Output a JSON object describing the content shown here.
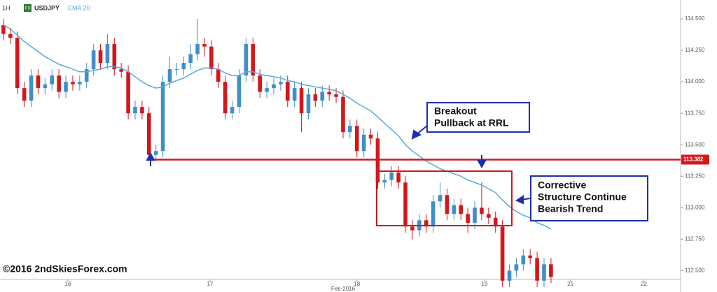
{
  "chart_data": {
    "type": "candlestick",
    "symbol": "USDJPY",
    "interval": "1H",
    "candles": {
      "up_color": "#3f8fc9",
      "down_color": "#d3171c",
      "open": [
        114.45,
        114.38,
        114.35,
        113.95,
        113.85,
        114.05,
        113.95,
        113.98,
        114.05,
        113.92,
        114.0,
        113.98,
        114.0,
        114.1,
        114.25,
        114.15,
        114.3,
        114.1,
        114.08,
        113.75,
        113.8,
        113.75,
        113.42,
        113.45,
        114.0,
        114.1,
        114.1,
        114.15,
        114.22,
        114.3,
        114.28,
        114.1,
        114.0,
        113.75,
        113.8,
        114.05,
        114.3,
        114.05,
        113.92,
        113.95,
        113.98,
        114.0,
        113.85,
        113.95,
        113.75,
        113.9,
        113.85,
        113.92,
        113.9,
        113.88,
        113.6,
        113.65,
        113.45,
        113.58,
        113.55,
        113.2,
        113.22,
        113.28,
        113.2,
        112.85,
        112.82,
        112.9,
        112.85,
        113.05,
        113.1,
        112.95,
        113.02,
        112.95,
        112.88,
        113.0,
        112.95,
        112.92,
        112.85,
        112.42,
        112.5,
        112.55,
        112.62,
        112.6,
        112.42,
        112.55
      ],
      "high": [
        114.5,
        114.43,
        114.4,
        114.0,
        114.1,
        114.1,
        114.03,
        114.1,
        114.1,
        114.05,
        114.05,
        114.05,
        114.15,
        114.3,
        114.3,
        114.38,
        114.35,
        114.15,
        114.13,
        113.85,
        113.85,
        113.8,
        113.5,
        114.05,
        114.2,
        114.15,
        114.2,
        114.3,
        114.5,
        114.35,
        114.33,
        114.15,
        114.05,
        113.85,
        114.1,
        114.35,
        114.35,
        114.1,
        114.0,
        114.03,
        114.05,
        114.05,
        114.0,
        114.0,
        113.95,
        113.95,
        113.97,
        113.97,
        113.95,
        113.93,
        113.7,
        113.7,
        113.63,
        113.63,
        113.6,
        113.27,
        113.33,
        113.33,
        113.25,
        112.9,
        112.95,
        112.95,
        113.1,
        113.2,
        113.15,
        113.07,
        113.07,
        113.0,
        113.05,
        113.2,
        113.0,
        112.97,
        112.9,
        112.55,
        112.6,
        112.67,
        112.67,
        112.65,
        112.6,
        112.6
      ],
      "low": [
        114.33,
        114.3,
        113.9,
        113.8,
        113.8,
        113.9,
        113.9,
        113.93,
        113.87,
        113.87,
        113.93,
        113.93,
        113.95,
        114.05,
        114.1,
        114.1,
        114.05,
        114.03,
        113.7,
        113.7,
        113.7,
        113.38,
        113.37,
        113.4,
        113.95,
        114.05,
        114.05,
        114.1,
        114.17,
        114.2,
        114.05,
        113.95,
        113.7,
        113.7,
        113.75,
        114.0,
        114.0,
        113.87,
        113.87,
        113.9,
        113.93,
        113.8,
        113.8,
        113.6,
        113.7,
        113.8,
        113.8,
        113.85,
        113.83,
        113.55,
        113.55,
        113.4,
        113.4,
        113.5,
        113.15,
        113.15,
        113.17,
        113.15,
        112.8,
        112.75,
        112.77,
        112.8,
        112.8,
        113.0,
        112.9,
        112.9,
        112.9,
        112.8,
        112.83,
        112.9,
        112.87,
        112.8,
        112.37,
        112.37,
        112.45,
        112.5,
        112.55,
        112.37,
        112.37,
        112.4
      ],
      "close": [
        114.38,
        114.35,
        113.95,
        113.85,
        114.05,
        113.95,
        113.98,
        114.05,
        113.92,
        114.0,
        113.98,
        114.0,
        114.1,
        114.25,
        114.15,
        114.3,
        114.1,
        114.08,
        113.75,
        113.8,
        113.75,
        113.42,
        113.45,
        114.0,
        114.1,
        114.1,
        114.15,
        114.22,
        114.3,
        114.28,
        114.1,
        114.0,
        113.75,
        113.8,
        114.05,
        114.3,
        114.05,
        113.92,
        113.95,
        113.98,
        114.0,
        113.85,
        113.95,
        113.75,
        113.9,
        113.85,
        113.92,
        113.9,
        113.88,
        113.6,
        113.65,
        113.45,
        113.58,
        113.55,
        113.2,
        113.22,
        113.28,
        113.2,
        112.85,
        112.82,
        112.9,
        112.85,
        113.05,
        113.1,
        112.95,
        113.02,
        112.95,
        112.88,
        113.0,
        112.95,
        112.92,
        112.85,
        112.42,
        112.5,
        112.55,
        112.62,
        112.6,
        112.42,
        112.55,
        112.45
      ]
    },
    "series": [
      {
        "name": "EMA 20",
        "color": "#5aaad8",
        "values": [
          114.45,
          114.42,
          114.37,
          114.32,
          114.28,
          114.24,
          114.2,
          114.17,
          114.14,
          114.12,
          114.1,
          114.08,
          114.08,
          114.09,
          114.1,
          114.12,
          114.12,
          114.11,
          114.08,
          114.04,
          114.0,
          113.97,
          113.95,
          113.96,
          113.99,
          114.01,
          114.03,
          114.06,
          114.09,
          114.11,
          114.11,
          114.1,
          114.07,
          114.05,
          114.05,
          114.08,
          114.08,
          114.06,
          114.05,
          114.04,
          114.03,
          114.01,
          114.0,
          113.98,
          113.97,
          113.96,
          113.95,
          113.94,
          113.93,
          113.9,
          113.87,
          113.83,
          113.8,
          113.77,
          113.72,
          113.67,
          113.62,
          113.57,
          113.5,
          113.45,
          113.41,
          113.37,
          113.34,
          113.31,
          113.29,
          113.27,
          113.25,
          113.22,
          113.2,
          113.18,
          113.15,
          113.12,
          113.06,
          113.01,
          112.97,
          112.94,
          112.92,
          112.88,
          112.86,
          112.83
        ]
      }
    ],
    "level": {
      "value": 113.382,
      "label": "113.382",
      "color": "#d3171c"
    },
    "xlim": [
      -0.5,
      97.7
    ],
    "xticks": [
      {
        "value": 9.3,
        "label": "16"
      },
      {
        "value": 29.8,
        "label": "17"
      },
      {
        "value": 51,
        "label": "18"
      },
      {
        "value": 69.4,
        "label": "19"
      },
      {
        "value": 81.8,
        "label": "21"
      },
      {
        "value": 92.4,
        "label": "22"
      }
    ],
    "x_axis_label": {
      "value": 49,
      "label": "Feb-2016"
    },
    "ylim": [
      112.43,
      114.65
    ],
    "yticks": [
      {
        "value": 114.5,
        "label": "114.500"
      },
      {
        "value": 114.25,
        "label": "114.250"
      },
      {
        "value": 114.0,
        "label": "114.000"
      },
      {
        "value": 113.75,
        "label": "113.750"
      },
      {
        "value": 113.5,
        "label": "113.500"
      },
      {
        "value": 113.25,
        "label": "113.250"
      },
      {
        "value": 113.0,
        "label": "113.000"
      },
      {
        "value": 112.75,
        "label": "112.750"
      },
      {
        "value": 112.5,
        "label": "112.500"
      }
    ],
    "grid": false,
    "annotations": [
      {
        "lines": [
          "Breakout",
          "Pullback at RRL"
        ]
      },
      {
        "lines": [
          "Corrective",
          "Structure Continue",
          "Bearish Trend"
        ]
      }
    ],
    "copyright": "©2016 2ndSkiesForex.com"
  }
}
